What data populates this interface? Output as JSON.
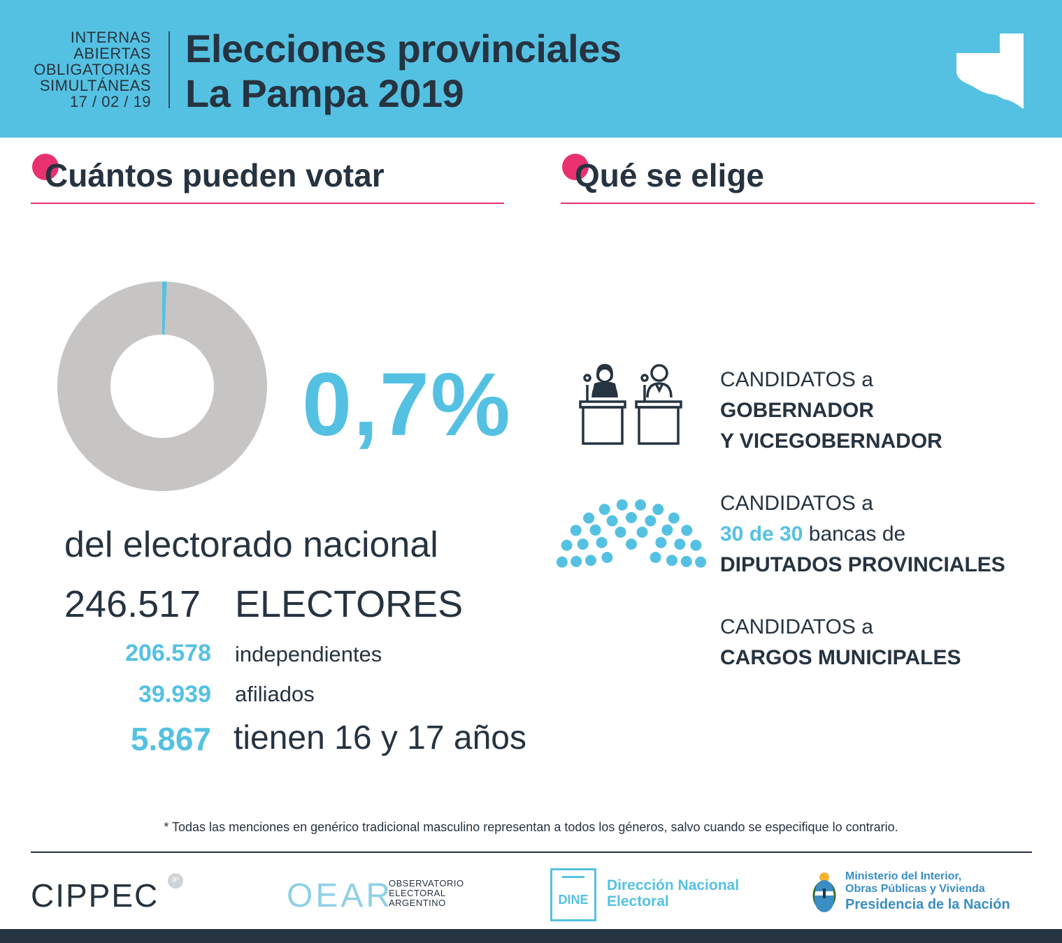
{
  "header": {
    "kicker": [
      "INTERNAS",
      "ABIERTAS",
      "OBLIGATORIAS",
      "SIMULTÁNEAS",
      "17 / 02 / 19"
    ],
    "title_line1": "Elecciones provinciales",
    "title_line2": "La Pampa 2019",
    "map_icon": "la-pampa-map-icon"
  },
  "left": {
    "section_title": "Cuántos pueden votar",
    "donut_share_percent": 0.7,
    "percent": "0,7%",
    "description": "del electorado nacional",
    "total_number": "246.517",
    "total_label": "ELECTORES",
    "rows": [
      {
        "number": "206.578",
        "label": "independientes"
      },
      {
        "number": "39.939",
        "label": "afiliados"
      }
    ],
    "youth_number": "5.867",
    "youth_label": "tienen 16 y 17 años"
  },
  "right": {
    "section_title": "Qué se elige",
    "blocks": [
      {
        "prefix": "CANDIDATOS a",
        "line2": "GOBERNADOR",
        "line3": "Y VICEGOBERNADOR",
        "icon": "podium-candidates-icon"
      },
      {
        "prefix": "CANDIDATOS a",
        "highlight": "30 de 30",
        "middle": " bancas de",
        "line3": "DIPUTADOS PROVINCIALES",
        "icon": "parliament-seats-icon"
      },
      {
        "prefix": "CANDIDATOS a",
        "line2": "CARGOS MUNICIPALES"
      }
    ]
  },
  "footer": {
    "note": "* Todas las menciones en genérico tradicional masculino representan a todos los géneros, salvo cuando se especifique lo contrario.",
    "logos": {
      "cippec": "CIPPEC",
      "cippec_badge": "IP",
      "oear_mark": "OEAR",
      "oear_text": [
        "OBSERVATORIO",
        "ELECTORAL",
        "ARGENTINO"
      ],
      "dine_mark": "DINE",
      "dine_text": [
        "Dirección Nacional",
        "Electoral"
      ],
      "ministry_text": [
        "Ministerio del Interior,",
        "Obras Públicas y Vivienda",
        "Presidencia de la Nación"
      ]
    }
  },
  "colors": {
    "accent": "#55c1e2",
    "pink": "#e8316e",
    "dark": "#263340",
    "gray": "#c6c5c4"
  }
}
